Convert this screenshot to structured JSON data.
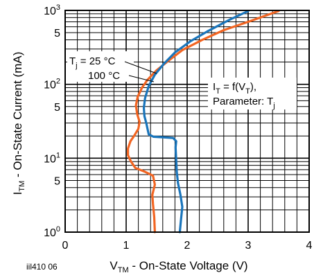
{
  "chart_data": {
    "type": "line",
    "xlabel": {
      "main": "V",
      "sub": "TM",
      "rest": " - On-State Voltage (V)"
    },
    "ylabel": {
      "main": "I",
      "sub": "TM",
      "rest": " - On-State Current (mA)"
    },
    "xlim": [
      0,
      4
    ],
    "ylim": [
      1,
      1000
    ],
    "y_scale": "log",
    "grid": true,
    "x_ticks": [
      "0",
      "1",
      "2",
      "3",
      "4"
    ],
    "y_ticks": [
      {
        "base": "10",
        "exp": "0",
        "value": 1
      },
      {
        "base": "5",
        "exp": "",
        "value": 5
      },
      {
        "base": "10",
        "exp": "1",
        "value": 10
      },
      {
        "base": "5",
        "exp": "",
        "value": 50
      },
      {
        "base": "10",
        "exp": "2",
        "value": 100
      },
      {
        "base": "5",
        "exp": "",
        "value": 500
      },
      {
        "base": "10",
        "exp": "3",
        "value": 1000
      }
    ],
    "series": [
      {
        "name": "Tj = 25 °C",
        "color": "#f26522",
        "points": [
          [
            1.47,
            1
          ],
          [
            1.46,
            1.6
          ],
          [
            1.44,
            2.4
          ],
          [
            1.43,
            3.2
          ],
          [
            1.47,
            4.4
          ],
          [
            1.44,
            5.8
          ],
          [
            1.3,
            6.6
          ],
          [
            1.15,
            7.4
          ],
          [
            1.08,
            9.0
          ],
          [
            1.03,
            11
          ],
          [
            1.03,
            13.5
          ],
          [
            1.07,
            17
          ],
          [
            1.13,
            20
          ],
          [
            1.2,
            25
          ],
          [
            1.22,
            31
          ],
          [
            1.18,
            40
          ],
          [
            1.16,
            52
          ],
          [
            1.19,
            68
          ],
          [
            1.26,
            90
          ],
          [
            1.35,
            115
          ],
          [
            1.5,
            155
          ],
          [
            1.7,
            210
          ],
          [
            1.92,
            290
          ],
          [
            2.25,
            400
          ],
          [
            2.6,
            540
          ],
          [
            3.0,
            700
          ],
          [
            3.5,
            980
          ]
        ]
      },
      {
        "name": "100 °C",
        "color": "#1a75bb",
        "points": [
          [
            1.88,
            1
          ],
          [
            1.9,
            1.5
          ],
          [
            1.92,
            2.2
          ],
          [
            1.89,
            3.2
          ],
          [
            1.85,
            4.6
          ],
          [
            1.83,
            6.5
          ],
          [
            1.82,
            9.5
          ],
          [
            1.81,
            14
          ],
          [
            1.82,
            17
          ],
          [
            1.77,
            18.8
          ],
          [
            1.6,
            19.2
          ],
          [
            1.45,
            19.5
          ],
          [
            1.37,
            21
          ],
          [
            1.35,
            25
          ],
          [
            1.33,
            30
          ],
          [
            1.3,
            37
          ],
          [
            1.29,
            48
          ],
          [
            1.31,
            65
          ],
          [
            1.37,
            95
          ],
          [
            1.47,
            135
          ],
          [
            1.62,
            190
          ],
          [
            1.8,
            270
          ],
          [
            2.05,
            380
          ],
          [
            2.35,
            530
          ],
          [
            2.7,
            750
          ],
          [
            3.0,
            980
          ]
        ]
      }
    ],
    "annotations": {
      "tj_prefix": "T",
      "tj_sub": "j",
      "tj_value": " = 25 °C",
      "tj_100": "100 °C",
      "func_i": "I",
      "func_i_sub": "T",
      "func_mid": " = f(V",
      "func_v_sub": "T",
      "func_end": "),",
      "param_text": "Parameter: T",
      "param_sub": "j"
    }
  },
  "figure_id": "iil410  06"
}
